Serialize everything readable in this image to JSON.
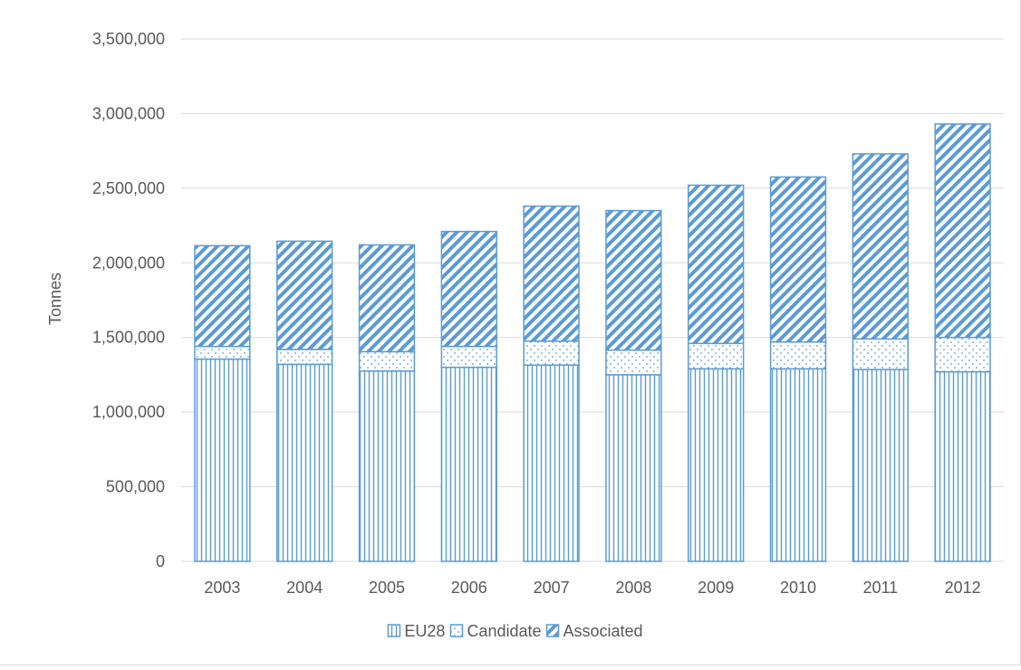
{
  "chart_data": {
    "type": "bar",
    "stacked": true,
    "categories": [
      "2003",
      "2004",
      "2005",
      "2006",
      "2007",
      "2008",
      "2009",
      "2010",
      "2011",
      "2012"
    ],
    "series": [
      {
        "name": "EU28",
        "pattern": "vertical-lines",
        "values": [
          1355000,
          1320000,
          1275000,
          1300000,
          1315000,
          1250000,
          1290000,
          1290000,
          1285000,
          1270000
        ]
      },
      {
        "name": "Candidate",
        "pattern": "dots",
        "values": [
          85000,
          100000,
          130000,
          140000,
          160000,
          165000,
          170000,
          180000,
          205000,
          230000
        ]
      },
      {
        "name": "Associated",
        "pattern": "diagonal-stripes",
        "values": [
          675000,
          725000,
          715000,
          770000,
          905000,
          935000,
          1060000,
          1105000,
          1240000,
          1430000
        ]
      }
    ],
    "ylabel": "Tonnes",
    "ylim": [
      0,
      3500000
    ],
    "yticks": [
      0,
      500000,
      1000000,
      1500000,
      2000000,
      2500000,
      3000000,
      3500000
    ],
    "ytick_labels": [
      "0",
      "500,000",
      "1,000,000",
      "1,500,000",
      "2,000,000",
      "2,500,000",
      "3,000,000",
      "3,500,000"
    ],
    "grid": true,
    "legend_position": "bottom-center",
    "color": "#5b9bd5"
  }
}
